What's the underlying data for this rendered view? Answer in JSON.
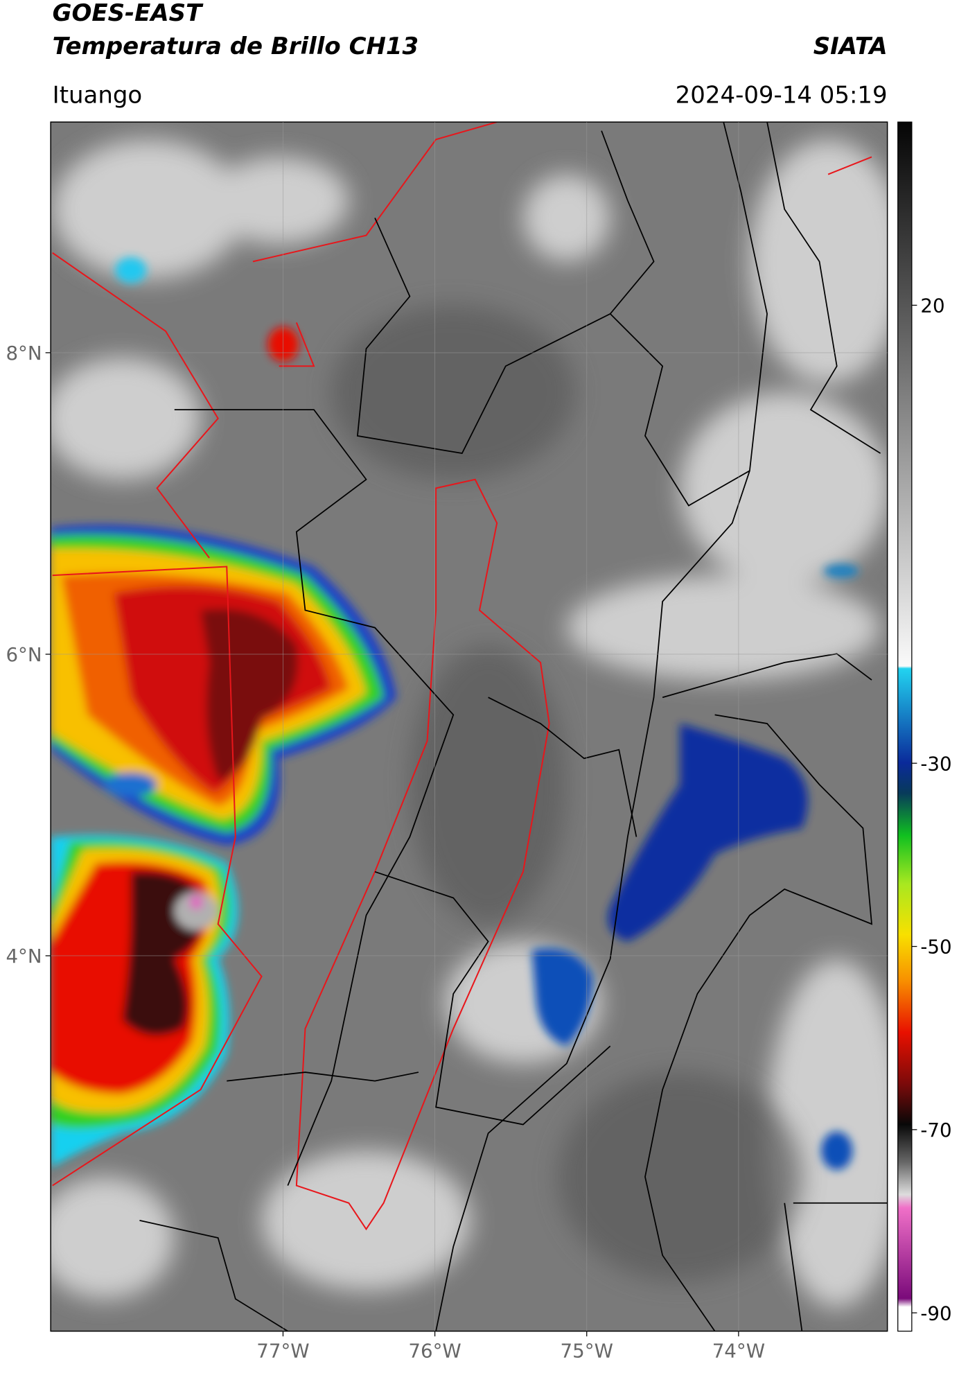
{
  "header": {
    "title_line1": "GOES-EAST",
    "title_line2": "Temperatura de Brillo CH13",
    "brand": "SIATA",
    "location": "Ituango",
    "datetime": "2024-09-14 05:19"
  },
  "map": {
    "xlim": [
      -78.53,
      -73.02
    ],
    "ylim": [
      1.51,
      9.53
    ],
    "xticks": [
      {
        "value": -77,
        "label": "77°W"
      },
      {
        "value": -76,
        "label": "76°W"
      },
      {
        "value": -75,
        "label": "75°W"
      },
      {
        "value": -74,
        "label": "74°W"
      }
    ],
    "yticks": [
      {
        "value": 8,
        "label": "8°N"
      },
      {
        "value": 6,
        "label": "6°N"
      },
      {
        "value": 4,
        "label": "4°N"
      }
    ],
    "grid": true
  },
  "colorbar": {
    "lim": [
      -92,
      40
    ],
    "ticks": [
      20,
      -30,
      -50,
      -70,
      -90
    ]
  }
}
